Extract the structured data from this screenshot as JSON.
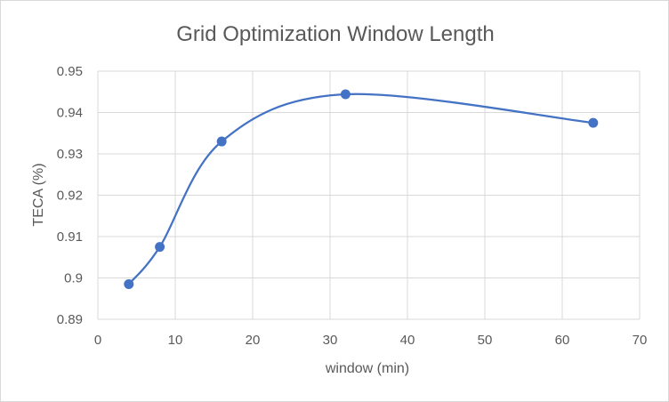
{
  "chart_data": {
    "type": "scatter",
    "title": "Grid Optimization Window Length",
    "xlabel": "window (min)",
    "ylabel": "TECA (%)",
    "xlim": [
      0,
      70
    ],
    "ylim": [
      0.89,
      0.95
    ],
    "x_ticks": [
      0,
      10,
      20,
      30,
      40,
      50,
      60,
      70
    ],
    "y_ticks": [
      0.89,
      0.9,
      0.91,
      0.92,
      0.93,
      0.94,
      0.95
    ],
    "x_tick_labels": [
      "0",
      "10",
      "20",
      "30",
      "40",
      "50",
      "60",
      "70"
    ],
    "y_tick_labels": [
      "0.89",
      "0.9",
      "0.91",
      "0.92",
      "0.93",
      "0.94",
      "0.95"
    ],
    "grid": true,
    "smooth_line": true,
    "series": [
      {
        "color": "#4472c4",
        "x": [
          4,
          8,
          16,
          32,
          64
        ],
        "y": [
          0.8985,
          0.9075,
          0.933,
          0.9444,
          0.9375
        ]
      }
    ]
  }
}
